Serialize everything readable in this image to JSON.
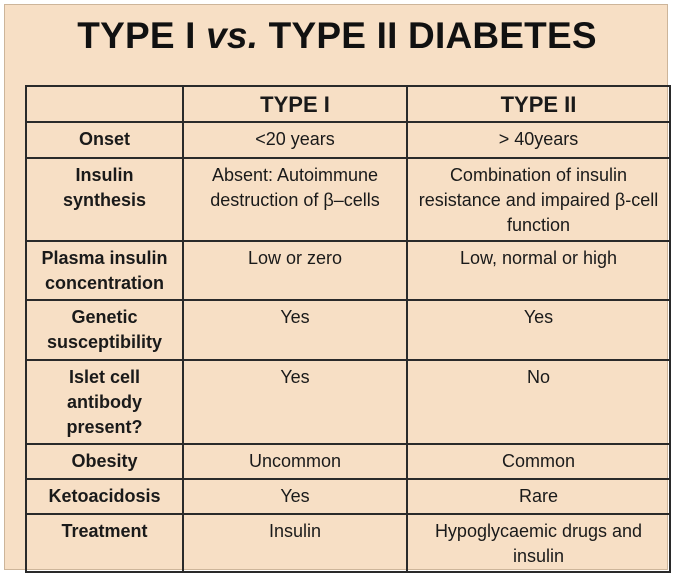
{
  "title": {
    "part1": "TYPE I ",
    "vs": "vs.",
    "part2": " TYPE II DIABETES"
  },
  "table": {
    "headers": [
      "",
      "TYPE I",
      "TYPE II"
    ],
    "rows": [
      {
        "label": "Onset",
        "type1": "<20 years",
        "type2": "> 40years"
      },
      {
        "label": "Insulin synthesis",
        "type1": "Absent: Autoimmune destruction of β–cells",
        "type2": "Combination of insulin resistance and impaired β-cell function"
      },
      {
        "label": "Plasma insulin concentration",
        "type1": "Low or zero",
        "type2": "Low, normal or high"
      },
      {
        "label": "Genetic susceptibility",
        "type1": "Yes",
        "type2": "Yes"
      },
      {
        "label": "Islet cell antibody present?",
        "type1": "Yes",
        "type2": "No"
      },
      {
        "label": "Obesity",
        "type1": "Uncommon",
        "type2": "Common"
      },
      {
        "label": "Ketoacidosis",
        "type1": "Yes",
        "type2": "Rare"
      },
      {
        "label": "Treatment",
        "type1": "Insulin",
        "type2": "Hypoglycaemic drugs and insulin"
      }
    ]
  },
  "colors": {
    "background": "#f7dfc5",
    "border": "#2a2a2a",
    "text": "#111111"
  }
}
